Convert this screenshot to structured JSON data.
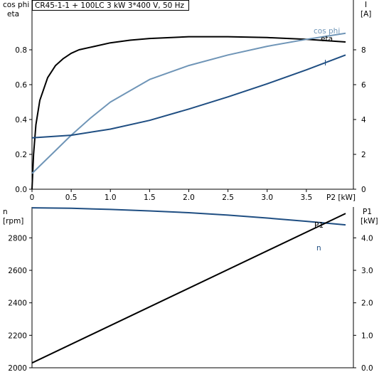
{
  "header": "CR45-1-1 + 100LC   3 kW   3*400 V, 50 Hz",
  "chart_data": [
    {
      "type": "line",
      "y_left_labels": [
        "cos phi",
        "eta"
      ],
      "y_right_labels": [
        "I",
        "[A]"
      ],
      "xlabel": "P2 [kW]",
      "xlim": [
        0,
        4.0
      ],
      "x_ticks": [
        "0",
        "0.5",
        "1.0",
        "1.5",
        "2.0",
        "2.5",
        "3.0",
        "3.5"
      ],
      "ylim_left": [
        0,
        1.0
      ],
      "y_left_ticks": [
        "0.0",
        "0.2",
        "0.4",
        "0.6",
        "0.8"
      ],
      "ylim_right": [
        0,
        10
      ],
      "y_right_ticks": [
        "0",
        "2",
        "4",
        "6",
        "8"
      ],
      "series": [
        {
          "name": "eta",
          "axis": "left",
          "color": "#000000",
          "x": [
            0,
            0.02,
            0.05,
            0.1,
            0.2,
            0.3,
            0.4,
            0.5,
            0.6,
            0.8,
            1.0,
            1.25,
            1.5,
            2.0,
            2.5,
            3.0,
            3.5,
            4.0
          ],
          "y": [
            0,
            0.2,
            0.37,
            0.51,
            0.64,
            0.71,
            0.75,
            0.78,
            0.8,
            0.82,
            0.84,
            0.855,
            0.865,
            0.875,
            0.875,
            0.87,
            0.86,
            0.845
          ]
        },
        {
          "name": "cos phi",
          "axis": "left",
          "color": "#6f95b7",
          "x": [
            0,
            0.25,
            0.5,
            0.75,
            1.0,
            1.5,
            2.0,
            2.5,
            3.0,
            3.5,
            4.0
          ],
          "y": [
            0.09,
            0.2,
            0.31,
            0.41,
            0.5,
            0.63,
            0.71,
            0.77,
            0.82,
            0.86,
            0.895
          ]
        },
        {
          "name": "I",
          "axis": "right",
          "color": "#1f4e82",
          "x": [
            0,
            0.5,
            1.0,
            1.5,
            2.0,
            2.5,
            3.0,
            3.5,
            4.0
          ],
          "y": [
            2.95,
            3.1,
            3.45,
            3.95,
            4.6,
            5.3,
            6.05,
            6.85,
            7.7
          ]
        }
      ]
    },
    {
      "type": "line",
      "y_left_labels": [
        "n",
        "[rpm]"
      ],
      "y_right_labels": [
        "P1",
        "[kW]"
      ],
      "xlim": [
        0,
        4.0
      ],
      "ylim_left": [
        2000,
        2990
      ],
      "y_left_ticks": [
        "2000",
        "2200",
        "2400",
        "2600",
        "2800"
      ],
      "ylim_right": [
        0,
        4.95
      ],
      "y_right_ticks": [
        "0.0",
        "1.0",
        "2.0",
        "3.0",
        "4.0"
      ],
      "series": [
        {
          "name": "n",
          "axis": "left",
          "color": "#1f4e82",
          "x": [
            0,
            0.5,
            1.0,
            1.5,
            2.0,
            2.5,
            3.0,
            3.5,
            4.0
          ],
          "y": [
            2985,
            2982,
            2975,
            2966,
            2955,
            2940,
            2922,
            2902,
            2880
          ]
        },
        {
          "name": "P1",
          "axis": "right",
          "color": "#000000",
          "x": [
            0,
            4.0
          ],
          "y": [
            0.15,
            4.75
          ]
        }
      ]
    }
  ]
}
